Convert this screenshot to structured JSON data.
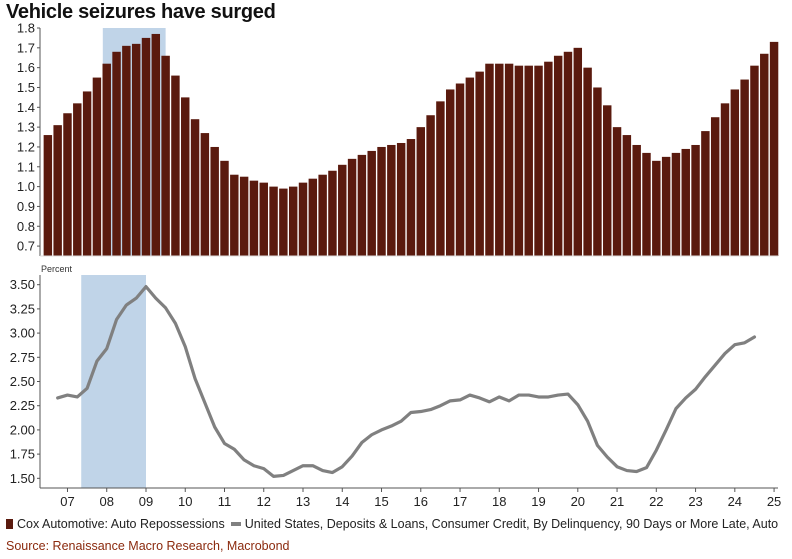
{
  "title": "Vehicle seizures have surged",
  "source": "Source: Renaissance Macro Research, Macrobond",
  "colors": {
    "bars": "#5a1a0e",
    "line": "#808080",
    "recession": "#c0d4e8",
    "source": "#8b2a0e"
  },
  "chart_data": [
    {
      "type": "bar",
      "name": "Cox Automotive: Auto Repossessions",
      "xlabel": "",
      "ylabel": "",
      "ylim": [
        0.65,
        1.8
      ],
      "yticks": [
        0.7,
        0.8,
        0.9,
        1.0,
        1.1,
        1.2,
        1.3,
        1.4,
        1.5,
        1.6,
        1.7,
        1.8
      ],
      "ytick_labels": [
        "0.7",
        "0.8",
        "0.9",
        "1.0",
        "1.1",
        "1.2",
        "1.3",
        "1.4",
        "1.5",
        "1.6",
        "1.7",
        "1.8"
      ],
      "x_start": 2006.5,
      "x_step": 0.25,
      "values": [
        1.26,
        1.31,
        1.37,
        1.42,
        1.48,
        1.55,
        1.62,
        1.68,
        1.71,
        1.72,
        1.75,
        1.77,
        1.66,
        1.56,
        1.45,
        1.34,
        1.27,
        1.2,
        1.13,
        1.06,
        1.05,
        1.03,
        1.02,
        1.0,
        0.99,
        1.0,
        1.02,
        1.04,
        1.06,
        1.08,
        1.11,
        1.14,
        1.16,
        1.18,
        1.2,
        1.21,
        1.22,
        1.24,
        1.3,
        1.36,
        1.43,
        1.49,
        1.52,
        1.55,
        1.58,
        1.62,
        1.62,
        1.62,
        1.61,
        1.61,
        1.61,
        1.63,
        1.66,
        1.68,
        1.7,
        1.6,
        1.5,
        1.41,
        1.3,
        1.26,
        1.21,
        1.17,
        1.13,
        1.15,
        1.17,
        1.19,
        1.21,
        1.28,
        1.35,
        1.42,
        1.49,
        1.54,
        1.61,
        1.67,
        1.73
      ],
      "recession": [
        2007.9,
        2009.5
      ]
    },
    {
      "type": "line",
      "name": "United States, Deposits & Loans, Consumer Credit, By Delinquency, 90 Days or More Late, Auto",
      "ylabel": "Percent",
      "ylim": [
        1.4,
        3.6
      ],
      "yticks": [
        1.5,
        1.75,
        2.0,
        2.25,
        2.5,
        2.75,
        3.0,
        3.25,
        3.5
      ],
      "ytick_labels": [
        "1.50",
        "1.75",
        "2.00",
        "2.25",
        "2.50",
        "2.75",
        "3.00",
        "3.25",
        "3.50"
      ],
      "points": [
        [
          2006.75,
          2.33
        ],
        [
          2007.0,
          2.36
        ],
        [
          2007.25,
          2.34
        ],
        [
          2007.5,
          2.43
        ],
        [
          2007.75,
          2.71
        ],
        [
          2008.0,
          2.84
        ],
        [
          2008.25,
          3.14
        ],
        [
          2008.5,
          3.29
        ],
        [
          2008.75,
          3.36
        ],
        [
          2009.0,
          3.48
        ],
        [
          2009.25,
          3.36
        ],
        [
          2009.5,
          3.26
        ],
        [
          2009.75,
          3.1
        ],
        [
          2010.0,
          2.86
        ],
        [
          2010.25,
          2.53
        ],
        [
          2010.5,
          2.28
        ],
        [
          2010.75,
          2.03
        ],
        [
          2011.0,
          1.86
        ],
        [
          2011.25,
          1.8
        ],
        [
          2011.5,
          1.69
        ],
        [
          2011.75,
          1.63
        ],
        [
          2012.0,
          1.6
        ],
        [
          2012.25,
          1.52
        ],
        [
          2012.5,
          1.53
        ],
        [
          2012.75,
          1.58
        ],
        [
          2013.0,
          1.63
        ],
        [
          2013.25,
          1.63
        ],
        [
          2013.5,
          1.58
        ],
        [
          2013.75,
          1.56
        ],
        [
          2014.0,
          1.62
        ],
        [
          2014.25,
          1.73
        ],
        [
          2014.5,
          1.87
        ],
        [
          2014.75,
          1.95
        ],
        [
          2015.0,
          2.0
        ],
        [
          2015.25,
          2.04
        ],
        [
          2015.5,
          2.09
        ],
        [
          2015.75,
          2.18
        ],
        [
          2016.0,
          2.19
        ],
        [
          2016.25,
          2.21
        ],
        [
          2016.5,
          2.25
        ],
        [
          2016.75,
          2.3
        ],
        [
          2017.0,
          2.31
        ],
        [
          2017.25,
          2.36
        ],
        [
          2017.5,
          2.33
        ],
        [
          2017.75,
          2.29
        ],
        [
          2018.0,
          2.34
        ],
        [
          2018.25,
          2.3
        ],
        [
          2018.5,
          2.36
        ],
        [
          2018.75,
          2.36
        ],
        [
          2019.0,
          2.34
        ],
        [
          2019.25,
          2.34
        ],
        [
          2019.5,
          2.36
        ],
        [
          2019.75,
          2.37
        ],
        [
          2020.0,
          2.26
        ],
        [
          2020.25,
          2.09
        ],
        [
          2020.5,
          1.84
        ],
        [
          2020.75,
          1.72
        ],
        [
          2021.0,
          1.62
        ],
        [
          2021.25,
          1.58
        ],
        [
          2021.5,
          1.57
        ],
        [
          2021.75,
          1.61
        ],
        [
          2022.0,
          1.79
        ],
        [
          2022.25,
          2.0
        ],
        [
          2022.5,
          2.22
        ],
        [
          2022.75,
          2.33
        ],
        [
          2023.0,
          2.42
        ],
        [
          2023.25,
          2.55
        ],
        [
          2023.5,
          2.67
        ],
        [
          2023.75,
          2.79
        ],
        [
          2024.0,
          2.88
        ],
        [
          2024.25,
          2.9
        ],
        [
          2024.5,
          2.96
        ]
      ],
      "recession": [
        2007.35,
        2009.0
      ]
    }
  ],
  "xaxis": {
    "range": [
      2006.3,
      2025.1
    ],
    "ticks": [
      2007,
      2008,
      2009,
      2010,
      2011,
      2012,
      2013,
      2014,
      2015,
      2016,
      2017,
      2018,
      2019,
      2020,
      2021,
      2022,
      2023,
      2024,
      2025
    ],
    "labels": [
      "07",
      "08",
      "09",
      "10",
      "11",
      "12",
      "13",
      "14",
      "15",
      "16",
      "17",
      "18",
      "19",
      "20",
      "21",
      "22",
      "23",
      "24",
      "25"
    ]
  },
  "legend": {
    "bars": "Cox Automotive: Auto Repossessions",
    "line": "United States, Deposits & Loans, Consumer Credit, By Delinquency, 90 Days or More Late, Auto"
  }
}
